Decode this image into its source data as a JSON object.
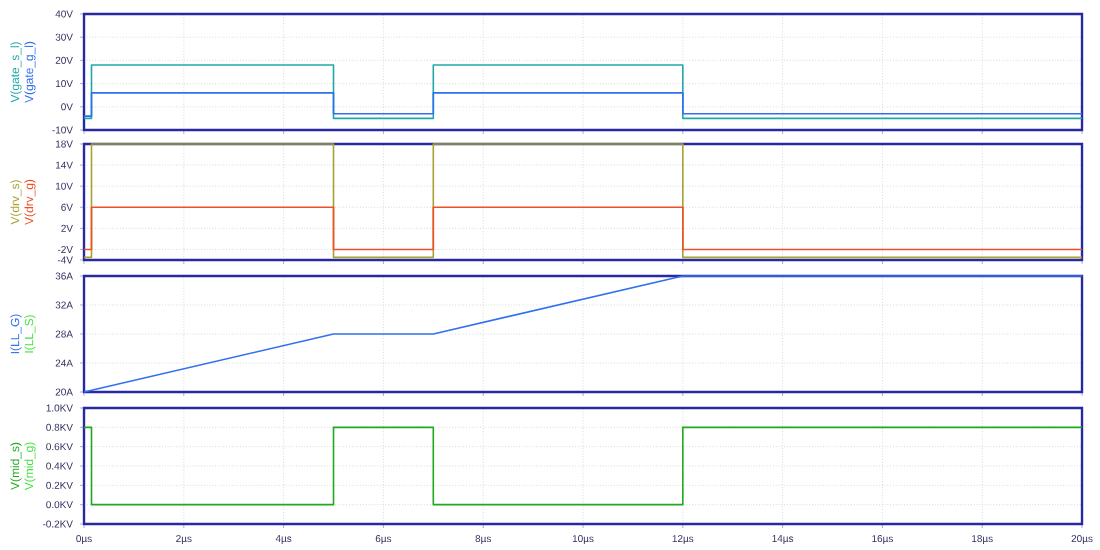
{
  "chart_data": [
    {
      "type": "line",
      "grid": true,
      "tick_labels": "y",
      "x": [
        0,
        0.15,
        0.15,
        5,
        5,
        7,
        7,
        12,
        12,
        20
      ],
      "series": [
        {
          "name": "V(gate_s_l)",
          "color": "#20a8a8",
          "values": [
            -5,
            -5,
            18,
            18,
            -5,
            -5,
            18,
            18,
            -5,
            -5
          ]
        },
        {
          "name": "V(gate_g_l)",
          "color": "#3070f0",
          "values": [
            -4,
            -4,
            6,
            6,
            -3,
            -3,
            6,
            6,
            -3,
            -3
          ]
        }
      ],
      "xlim": [
        0,
        20
      ],
      "xticks": [
        {
          "value": 0,
          "label": null
        },
        {
          "value": 2,
          "label": null
        },
        {
          "value": 4,
          "label": null
        },
        {
          "value": 6,
          "label": null
        },
        {
          "value": 8,
          "label": null
        },
        {
          "value": 10,
          "label": null
        },
        {
          "value": 12,
          "label": null
        },
        {
          "value": 14,
          "label": null
        },
        {
          "value": 16,
          "label": null
        },
        {
          "value": 18,
          "label": null
        },
        {
          "value": 20,
          "label": null
        }
      ],
      "ylim": [
        -10,
        40
      ],
      "yticks": [
        {
          "value": -10,
          "label": "-10V"
        },
        {
          "value": 0,
          "label": "0V"
        },
        {
          "value": 10,
          "label": "10V"
        },
        {
          "value": 20,
          "label": "20V"
        },
        {
          "value": 30,
          "label": "30V"
        },
        {
          "value": 40,
          "label": "40V"
        }
      ]
    },
    {
      "type": "line",
      "grid": true,
      "tick_labels": "y",
      "x": [
        0,
        0.15,
        0.15,
        5,
        5,
        7,
        7,
        12,
        12,
        20
      ],
      "series": [
        {
          "name": "V(drv_s)",
          "color": "#a8a030",
          "values": [
            -3.5,
            -3.5,
            18,
            18,
            -3.5,
            -3.5,
            18,
            18,
            -3.5,
            -3.5
          ]
        },
        {
          "name": "V(drv_g)",
          "color": "#f05028",
          "values": [
            -2,
            -2,
            6,
            6,
            -2,
            -2,
            6,
            6,
            -2,
            -2
          ]
        }
      ],
      "xlim": [
        0,
        20
      ],
      "xticks": [
        {
          "value": 0,
          "label": null
        },
        {
          "value": 2,
          "label": null
        },
        {
          "value": 4,
          "label": null
        },
        {
          "value": 6,
          "label": null
        },
        {
          "value": 8,
          "label": null
        },
        {
          "value": 10,
          "label": null
        },
        {
          "value": 12,
          "label": null
        },
        {
          "value": 14,
          "label": null
        },
        {
          "value": 16,
          "label": null
        },
        {
          "value": 18,
          "label": null
        },
        {
          "value": 20,
          "label": null
        }
      ],
      "ylim": [
        -4,
        18
      ],
      "yticks": [
        {
          "value": -4,
          "label": "-4V"
        },
        {
          "value": -2,
          "label": "-2V"
        },
        {
          "value": 2,
          "label": "2V"
        },
        {
          "value": 6,
          "label": "6V"
        },
        {
          "value": 10,
          "label": "10V"
        },
        {
          "value": 14,
          "label": "14V"
        },
        {
          "value": 18,
          "label": "18V"
        }
      ]
    },
    {
      "type": "line",
      "grid": true,
      "tick_labels": "y",
      "x": [
        0,
        5,
        7,
        12,
        20
      ],
      "series": [
        {
          "name": "I(LL_G)",
          "color": "#3070f0",
          "values": [
            20,
            28,
            28,
            36,
            36
          ]
        },
        {
          "name": "I(LL_S)",
          "color": "#40e040",
          "values": [
            null,
            null,
            null,
            null,
            null
          ]
        }
      ],
      "xlim": [
        0,
        20
      ],
      "xticks": [
        {
          "value": 0,
          "label": null
        },
        {
          "value": 2,
          "label": null
        },
        {
          "value": 4,
          "label": null
        },
        {
          "value": 6,
          "label": null
        },
        {
          "value": 8,
          "label": null
        },
        {
          "value": 10,
          "label": null
        },
        {
          "value": 12,
          "label": null
        },
        {
          "value": 14,
          "label": null
        },
        {
          "value": 16,
          "label": null
        },
        {
          "value": 18,
          "label": null
        },
        {
          "value": 20,
          "label": null
        }
      ],
      "ylim": [
        20,
        36
      ],
      "yticks": [
        {
          "value": 20,
          "label": "20A"
        },
        {
          "value": 24,
          "label": "24A"
        },
        {
          "value": 28,
          "label": "28A"
        },
        {
          "value": 32,
          "label": "32A"
        },
        {
          "value": 36,
          "label": "36A"
        }
      ]
    },
    {
      "type": "line",
      "grid": true,
      "x": [
        0,
        0.15,
        0.15,
        5,
        5,
        7,
        7,
        12,
        12,
        20
      ],
      "series": [
        {
          "name": "V(mid_s)",
          "color": "#20a820",
          "values": [
            0.8,
            0.8,
            0,
            0,
            0.8,
            0.8,
            0,
            0,
            0.8,
            0.8
          ]
        },
        {
          "name": "V(mid_g)",
          "color": "#40e040",
          "values": [
            null,
            null,
            null,
            null,
            null,
            null,
            null,
            null,
            null,
            null
          ]
        }
      ],
      "xlim": [
        0,
        20
      ],
      "xticks": [
        {
          "value": 0,
          "label": "0µs"
        },
        {
          "value": 2,
          "label": "2µs"
        },
        {
          "value": 4,
          "label": "4µs"
        },
        {
          "value": 6,
          "label": "6µs"
        },
        {
          "value": 8,
          "label": "8µs"
        },
        {
          "value": 10,
          "label": "10µs"
        },
        {
          "value": 12,
          "label": "12µs"
        },
        {
          "value": 14,
          "label": "14µs"
        },
        {
          "value": 16,
          "label": "16µs"
        },
        {
          "value": 18,
          "label": "18µs"
        },
        {
          "value": 20,
          "label": "20µs"
        }
      ],
      "ylim": [
        -0.2,
        1.0
      ],
      "yticks": [
        {
          "value": -0.2,
          "label": "-0.2KV"
        },
        {
          "value": 0,
          "label": "0.0KV"
        },
        {
          "value": 0.2,
          "label": "0.2KV"
        },
        {
          "value": 0.4,
          "label": "0.4KV"
        },
        {
          "value": 0.6,
          "label": "0.6KV"
        },
        {
          "value": 0.8,
          "label": "0.8KV"
        },
        {
          "value": 1.0,
          "label": "1.0KV"
        }
      ]
    }
  ]
}
